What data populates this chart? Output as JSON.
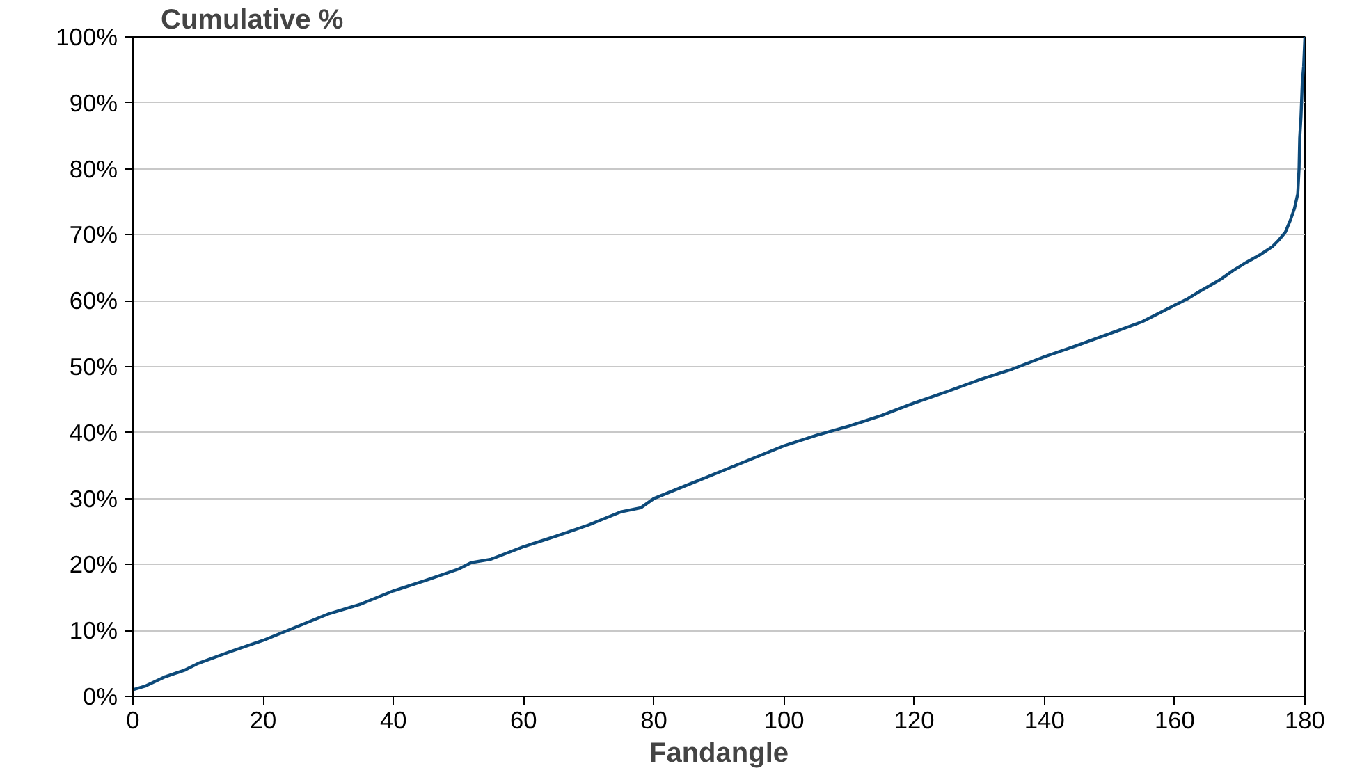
{
  "chart_data": {
    "type": "line",
    "ylabel": "Cumulative %",
    "xlabel": "Fandangle",
    "x": [
      0,
      2,
      5,
      8,
      10,
      15,
      20,
      25,
      30,
      35,
      40,
      45,
      50,
      52,
      55,
      60,
      65,
      70,
      75,
      78,
      80,
      85,
      90,
      95,
      100,
      105,
      110,
      115,
      120,
      125,
      130,
      135,
      140,
      145,
      150,
      155,
      160,
      162,
      164,
      167,
      169,
      171,
      173,
      175,
      176,
      177,
      177.8,
      178.4,
      178.9,
      179.1,
      179.2,
      179.4,
      179.6,
      179.8,
      180
    ],
    "series": [
      {
        "color": "#0d4a7a",
        "values": [
          1,
          1.6,
          3,
          4,
          5,
          6.8,
          8.5,
          10.5,
          12.5,
          14,
          16,
          17.6,
          19.3,
          20.3,
          20.8,
          22.7,
          24.3,
          26,
          28,
          28.6,
          30,
          32,
          34,
          36,
          38,
          39.6,
          41,
          42.6,
          44.5,
          46.2,
          48,
          49.6,
          51.5,
          53.2,
          55,
          56.8,
          59.3,
          60.3,
          61.5,
          63.2,
          64.6,
          65.8,
          66.9,
          68.2,
          69.2,
          70.4,
          72.3,
          74,
          76.2,
          80,
          84.7,
          88,
          93.2,
          95.5,
          100
        ]
      }
    ],
    "xlim": [
      0,
      180
    ],
    "ylim": [
      0,
      100
    ],
    "xticks": [
      0,
      20,
      40,
      60,
      80,
      100,
      120,
      140,
      160,
      180
    ],
    "yticks": [
      {
        "value": 0,
        "label": "0%"
      },
      {
        "value": 10,
        "label": "10%"
      },
      {
        "value": 20,
        "label": "20%"
      },
      {
        "value": 30,
        "label": "30%"
      },
      {
        "value": 40,
        "label": "40%"
      },
      {
        "value": 50,
        "label": "50%"
      },
      {
        "value": 60,
        "label": "60%"
      },
      {
        "value": 70,
        "label": "70%"
      },
      {
        "value": 80,
        "label": "80%"
      },
      {
        "value": 90,
        "label": "90%"
      },
      {
        "value": 100,
        "label": "100%"
      }
    ],
    "grid": "y",
    "marker": "none",
    "line_style": "solid"
  }
}
